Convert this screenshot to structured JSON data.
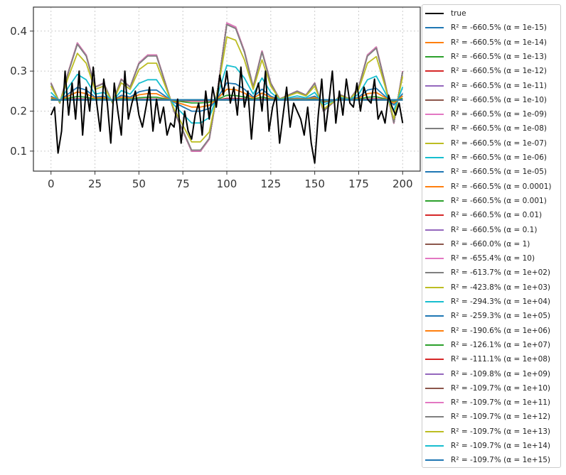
{
  "colors": {
    "true": "#000000",
    "palette": [
      "#1f77b4",
      "#ff7f0e",
      "#2ca02c",
      "#d62728",
      "#9467bd",
      "#8c564b",
      "#e377c2",
      "#7f7f7f",
      "#bcbd22",
      "#17becf"
    ],
    "grid": "#cccccc",
    "axis": "#333333"
  },
  "chart_data": {
    "type": "line",
    "title": "",
    "xlabel": "",
    "ylabel": "",
    "xlim": [
      -10,
      210
    ],
    "ylim": [
      0.05,
      0.46
    ],
    "grid": true,
    "grid_style": "dotted",
    "legend_placement": "outside-right",
    "x_ticks": [
      0,
      25,
      50,
      75,
      100,
      125,
      150,
      175,
      200
    ],
    "x_tick_labels": [
      "0",
      "25",
      "50",
      "75",
      "100",
      "125",
      "150",
      "175",
      "200"
    ],
    "y_ticks": [
      0.1,
      0.2,
      0.3,
      0.4
    ],
    "y_tick_labels": [
      "0.1",
      "0.2",
      "0.3",
      "0.4"
    ],
    "true_series": {
      "name": "true",
      "x": [
        0,
        2,
        4,
        6,
        8,
        10,
        12,
        14,
        16,
        18,
        20,
        22,
        24,
        26,
        28,
        30,
        32,
        34,
        36,
        38,
        40,
        42,
        44,
        46,
        48,
        50,
        52,
        54,
        56,
        58,
        60,
        62,
        64,
        66,
        68,
        70,
        72,
        74,
        76,
        78,
        80,
        82,
        84,
        86,
        88,
        90,
        92,
        94,
        96,
        98,
        100,
        102,
        104,
        106,
        108,
        110,
        112,
        114,
        116,
        118,
        120,
        122,
        124,
        126,
        128,
        130,
        132,
        134,
        136,
        138,
        140,
        142,
        144,
        146,
        148,
        150,
        152,
        154,
        156,
        158,
        160,
        162,
        164,
        166,
        168,
        170,
        172,
        174,
        176,
        178,
        180,
        182,
        184,
        186,
        188,
        190,
        192,
        194,
        196,
        198,
        200
      ],
      "y": [
        0.19,
        0.21,
        0.095,
        0.15,
        0.3,
        0.19,
        0.27,
        0.18,
        0.3,
        0.14,
        0.26,
        0.2,
        0.31,
        0.22,
        0.15,
        0.28,
        0.22,
        0.12,
        0.27,
        0.2,
        0.14,
        0.3,
        0.18,
        0.22,
        0.25,
        0.19,
        0.16,
        0.21,
        0.26,
        0.15,
        0.23,
        0.17,
        0.21,
        0.14,
        0.17,
        0.16,
        0.23,
        0.12,
        0.2,
        0.15,
        0.13,
        0.19,
        0.22,
        0.14,
        0.25,
        0.18,
        0.26,
        0.21,
        0.29,
        0.24,
        0.3,
        0.22,
        0.26,
        0.19,
        0.31,
        0.21,
        0.25,
        0.13,
        0.24,
        0.27,
        0.2,
        0.3,
        0.15,
        0.21,
        0.24,
        0.12,
        0.19,
        0.26,
        0.16,
        0.22,
        0.2,
        0.18,
        0.14,
        0.21,
        0.12,
        0.07,
        0.19,
        0.28,
        0.15,
        0.22,
        0.3,
        0.17,
        0.25,
        0.19,
        0.28,
        0.22,
        0.21,
        0.27,
        0.2,
        0.26,
        0.23,
        0.22,
        0.28,
        0.18,
        0.2,
        0.17,
        0.24,
        0.21,
        0.19,
        0.22,
        0.17
      ]
    },
    "pred_x": [
      0,
      5,
      10,
      15,
      20,
      25,
      30,
      35,
      40,
      45,
      50,
      55,
      60,
      65,
      70,
      75,
      80,
      85,
      90,
      95,
      100,
      105,
      110,
      115,
      120,
      125,
      130,
      135,
      140,
      145,
      150,
      155,
      160,
      165,
      170,
      175,
      180,
      185,
      190,
      195,
      200
    ],
    "pred_base": [
      0.27,
      0.22,
      0.3,
      0.37,
      0.34,
      0.26,
      0.27,
      0.22,
      0.28,
      0.26,
      0.32,
      0.34,
      0.34,
      0.27,
      0.2,
      0.15,
      0.1,
      0.1,
      0.13,
      0.26,
      0.42,
      0.41,
      0.35,
      0.26,
      0.35,
      0.27,
      0.23,
      0.24,
      0.25,
      0.24,
      0.27,
      0.2,
      0.22,
      0.24,
      0.23,
      0.26,
      0.34,
      0.36,
      0.27,
      0.17,
      0.3
    ],
    "mean_value": 0.228,
    "series": [
      {
        "name": "R² = -660.5%  (α = 1e-15)",
        "label_r2": "-660.5%",
        "alpha": "1e-15",
        "shrink": 1.0
      },
      {
        "name": "R² = -660.5%  (α = 1e-14)",
        "label_r2": "-660.5%",
        "alpha": "1e-14",
        "shrink": 1.0
      },
      {
        "name": "R² = -660.5%  (α = 1e-13)",
        "label_r2": "-660.5%",
        "alpha": "1e-13",
        "shrink": 1.0
      },
      {
        "name": "R² = -660.5%  (α = 1e-12)",
        "label_r2": "-660.5%",
        "alpha": "1e-12",
        "shrink": 1.0
      },
      {
        "name": "R² = -660.5%  (α = 1e-11)",
        "label_r2": "-660.5%",
        "alpha": "1e-11",
        "shrink": 1.0
      },
      {
        "name": "R² = -660.5%  (α = 1e-10)",
        "label_r2": "-660.5%",
        "alpha": "1e-10",
        "shrink": 1.0
      },
      {
        "name": "R² = -660.5%  (α = 1e-09)",
        "label_r2": "-660.5%",
        "alpha": "1e-09",
        "shrink": 1.0
      },
      {
        "name": "R² = -660.5%  (α = 1e-08)",
        "label_r2": "-660.5%",
        "alpha": "1e-08",
        "shrink": 0.98
      },
      {
        "name": "R² = -660.5%  (α = 1e-07)",
        "label_r2": "-660.5%",
        "alpha": "1e-07",
        "shrink": 0.82
      },
      {
        "name": "R² = -660.5%  (α = 1e-06)",
        "label_r2": "-660.5%",
        "alpha": "1e-06",
        "shrink": 0.45
      },
      {
        "name": "R² = -660.5%  (α = 1e-05)",
        "label_r2": "-660.5%",
        "alpha": "1e-05",
        "shrink": 0.22
      },
      {
        "name": "R² = -660.5%  (α = 0.0001)",
        "label_r2": "-660.5%",
        "alpha": "0.0001",
        "shrink": 0.14
      },
      {
        "name": "R² = -660.5%  (α = 0.001)",
        "label_r2": "-660.5%",
        "alpha": "0.001",
        "shrink": 0.06
      },
      {
        "name": "R² = -660.5%  (α = 0.01)",
        "label_r2": "-660.5%",
        "alpha": "0.01",
        "shrink": 0.02
      },
      {
        "name": "R² = -660.5%  (α = 0.1)",
        "label_r2": "-660.5%",
        "alpha": "0.1",
        "shrink": 0.01
      },
      {
        "name": "R² = -660.0%  (α = 1)",
        "label_r2": "-660.0%",
        "alpha": "1",
        "shrink": 0.0
      },
      {
        "name": "R² = -655.4%  (α = 10)",
        "label_r2": "-655.4%",
        "alpha": "10",
        "shrink": 0.0
      },
      {
        "name": "R² = -613.7%  (α = 1e+02)",
        "label_r2": "-613.7%",
        "alpha": "1e+02",
        "shrink": 0.0
      },
      {
        "name": "R² = -423.8%  (α = 1e+03)",
        "label_r2": "-423.8%",
        "alpha": "1e+03",
        "shrink": 0.0
      },
      {
        "name": "R² = -294.3%  (α = 1e+04)",
        "label_r2": "-294.3%",
        "alpha": "1e+04",
        "shrink": 0.0
      },
      {
        "name": "R² = -259.3%  (α = 1e+05)",
        "label_r2": "-259.3%",
        "alpha": "1e+05",
        "shrink": 0.0
      },
      {
        "name": "R² = -190.6%  (α = 1e+06)",
        "label_r2": "-190.6%",
        "alpha": "1e+06",
        "shrink": 0.0
      },
      {
        "name": "R² = -126.1%  (α = 1e+07)",
        "label_r2": "-126.1%",
        "alpha": "1e+07",
        "shrink": 0.0
      },
      {
        "name": "R² = -111.1%  (α = 1e+08)",
        "label_r2": "-111.1%",
        "alpha": "1e+08",
        "shrink": 0.0
      },
      {
        "name": "R² = -109.8%  (α = 1e+09)",
        "label_r2": "-109.8%",
        "alpha": "1e+09",
        "shrink": 0.0
      },
      {
        "name": "R² = -109.7%  (α = 1e+10)",
        "label_r2": "-109.7%",
        "alpha": "1e+10",
        "shrink": 0.0
      },
      {
        "name": "R² = -109.7%  (α = 1e+11)",
        "label_r2": "-109.7%",
        "alpha": "1e+11",
        "shrink": 0.0
      },
      {
        "name": "R² = -109.7%  (α = 1e+12)",
        "label_r2": "-109.7%",
        "alpha": "1e+12",
        "shrink": 0.0
      },
      {
        "name": "R² = -109.7%  (α = 1e+13)",
        "label_r2": "-109.7%",
        "alpha": "1e+13",
        "shrink": 0.0
      },
      {
        "name": "R² = -109.7%  (α = 1e+14)",
        "label_r2": "-109.7%",
        "alpha": "1e+14",
        "shrink": 0.0
      },
      {
        "name": "R² = -109.7%  (α = 1e+15)",
        "label_r2": "-109.7%",
        "alpha": "1e+15",
        "shrink": 0.0
      }
    ]
  }
}
